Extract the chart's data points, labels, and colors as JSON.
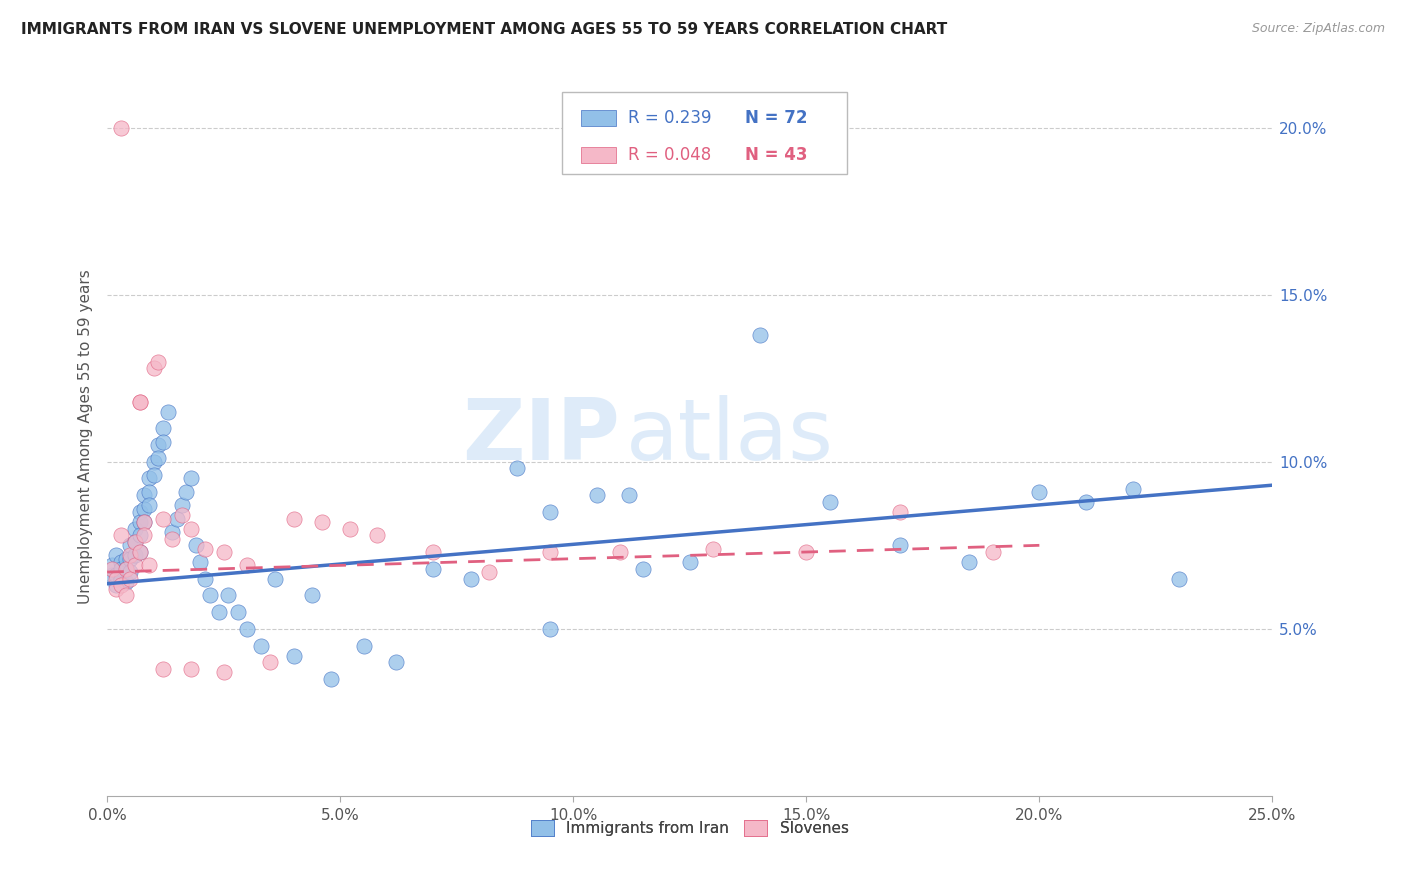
{
  "title": "IMMIGRANTS FROM IRAN VS SLOVENE UNEMPLOYMENT AMONG AGES 55 TO 59 YEARS CORRELATION CHART",
  "source": "Source: ZipAtlas.com",
  "xlabel_ticks": [
    "0.0%",
    "5.0%",
    "10.0%",
    "15.0%",
    "20.0%",
    "25.0%"
  ],
  "xlabel_vals": [
    0.0,
    0.05,
    0.1,
    0.15,
    0.2,
    0.25
  ],
  "ylabel_ticks": [
    "5.0%",
    "10.0%",
    "15.0%",
    "20.0%"
  ],
  "ylabel_vals": [
    0.05,
    0.1,
    0.15,
    0.2
  ],
  "xmin": 0.0,
  "xmax": 0.25,
  "ymin": 0.0,
  "ymax": 0.215,
  "ylabel": "Unemployment Among Ages 55 to 59 years",
  "legend_labels": [
    "Immigrants from Iran",
    "Slovenes"
  ],
  "blue_color": "#92c0e8",
  "pink_color": "#f5b8c8",
  "blue_line_color": "#4472c4",
  "pink_line_color": "#e06080",
  "legend_R1": "R = 0.239",
  "legend_N1": "N = 72",
  "legend_R2": "R = 0.048",
  "legend_N2": "N = 43",
  "watermark_zip": "ZIP",
  "watermark_atlas": "atlas",
  "blue_scatter_x": [
    0.001,
    0.001,
    0.002,
    0.002,
    0.002,
    0.003,
    0.003,
    0.003,
    0.003,
    0.004,
    0.004,
    0.004,
    0.005,
    0.005,
    0.005,
    0.006,
    0.006,
    0.006,
    0.007,
    0.007,
    0.007,
    0.007,
    0.008,
    0.008,
    0.008,
    0.009,
    0.009,
    0.009,
    0.01,
    0.01,
    0.011,
    0.011,
    0.012,
    0.012,
    0.013,
    0.014,
    0.015,
    0.016,
    0.017,
    0.018,
    0.019,
    0.02,
    0.021,
    0.022,
    0.024,
    0.026,
    0.028,
    0.03,
    0.033,
    0.036,
    0.04,
    0.044,
    0.048,
    0.055,
    0.062,
    0.07,
    0.078,
    0.088,
    0.095,
    0.105,
    0.115,
    0.125,
    0.14,
    0.155,
    0.17,
    0.185,
    0.2,
    0.21,
    0.22,
    0.23,
    0.112,
    0.095
  ],
  "blue_scatter_y": [
    0.066,
    0.069,
    0.063,
    0.072,
    0.066,
    0.067,
    0.07,
    0.068,
    0.065,
    0.071,
    0.068,
    0.064,
    0.075,
    0.071,
    0.067,
    0.08,
    0.076,
    0.072,
    0.085,
    0.082,
    0.078,
    0.073,
    0.09,
    0.086,
    0.082,
    0.095,
    0.091,
    0.087,
    0.1,
    0.096,
    0.105,
    0.101,
    0.11,
    0.106,
    0.115,
    0.079,
    0.083,
    0.087,
    0.091,
    0.095,
    0.075,
    0.07,
    0.065,
    0.06,
    0.055,
    0.06,
    0.055,
    0.05,
    0.045,
    0.065,
    0.042,
    0.06,
    0.035,
    0.045,
    0.04,
    0.068,
    0.065,
    0.098,
    0.085,
    0.09,
    0.068,
    0.07,
    0.138,
    0.088,
    0.075,
    0.07,
    0.091,
    0.088,
    0.092,
    0.065,
    0.09,
    0.05
  ],
  "pink_scatter_x": [
    0.001,
    0.002,
    0.002,
    0.003,
    0.003,
    0.004,
    0.004,
    0.005,
    0.005,
    0.006,
    0.006,
    0.007,
    0.007,
    0.008,
    0.008,
    0.009,
    0.01,
    0.011,
    0.012,
    0.014,
    0.016,
    0.018,
    0.021,
    0.025,
    0.03,
    0.035,
    0.04,
    0.046,
    0.052,
    0.058,
    0.07,
    0.082,
    0.095,
    0.11,
    0.13,
    0.15,
    0.17,
    0.19,
    0.003,
    0.007,
    0.012,
    0.018,
    0.025
  ],
  "pink_scatter_y": [
    0.068,
    0.065,
    0.062,
    0.2,
    0.063,
    0.068,
    0.06,
    0.072,
    0.065,
    0.076,
    0.069,
    0.118,
    0.073,
    0.082,
    0.078,
    0.069,
    0.128,
    0.13,
    0.083,
    0.077,
    0.084,
    0.08,
    0.074,
    0.073,
    0.069,
    0.04,
    0.083,
    0.082,
    0.08,
    0.078,
    0.073,
    0.067,
    0.073,
    0.073,
    0.074,
    0.073,
    0.085,
    0.073,
    0.078,
    0.118,
    0.038,
    0.038,
    0.037
  ],
  "blue_trend_x": [
    0.0,
    0.25
  ],
  "blue_trend_y": [
    0.0635,
    0.093
  ],
  "pink_trend_x": [
    0.0,
    0.2
  ],
  "pink_trend_y": [
    0.067,
    0.075
  ]
}
